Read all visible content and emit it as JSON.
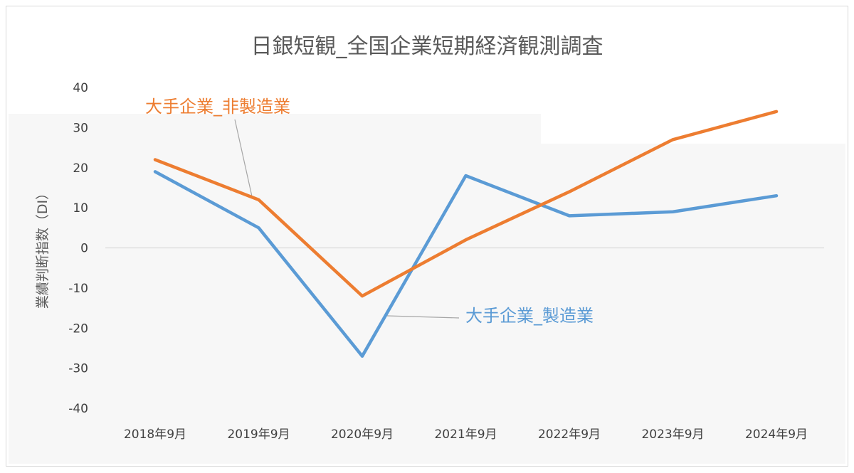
{
  "chart_data": {
    "type": "line",
    "title": "日銀短観_全国企業短期経済観測調査",
    "ylabel": "業績判断指数（DI）",
    "xlabel": "",
    "categories": [
      "2018年9月",
      "2019年9月",
      "2020年9月",
      "2021年9月",
      "2022年9月",
      "2023年9月",
      "2024年9月"
    ],
    "ylim": [
      -40,
      40
    ],
    "yticks": [
      "40",
      "30",
      "20",
      "10",
      "0",
      "-10",
      "-20",
      "-30",
      "-40"
    ],
    "grid": false,
    "series": [
      {
        "name": "大手企業_製造業",
        "color": "#5B9BD5",
        "values": [
          19,
          5,
          -27,
          18,
          8,
          9,
          13
        ]
      },
      {
        "name": "大手企業_非製造業",
        "color": "#ED7D31",
        "values": [
          22,
          12,
          -12,
          2,
          14,
          27,
          34
        ]
      }
    ]
  }
}
